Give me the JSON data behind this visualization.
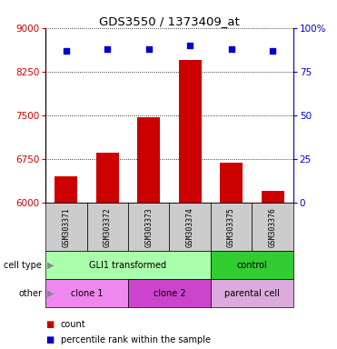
{
  "title": "GDS3550 / 1373409_at",
  "samples": [
    "GSM303371",
    "GSM303372",
    "GSM303373",
    "GSM303374",
    "GSM303375",
    "GSM303376"
  ],
  "counts": [
    6450,
    6850,
    7460,
    8450,
    6680,
    6200
  ],
  "percentile_ranks": [
    87,
    88,
    88,
    90,
    88,
    87
  ],
  "ylim_left": [
    6000,
    9000
  ],
  "ylim_right": [
    0,
    100
  ],
  "yticks_left": [
    6000,
    6750,
    7500,
    8250,
    9000
  ],
  "yticks_right": [
    0,
    25,
    50,
    75,
    100
  ],
  "bar_color": "#cc0000",
  "dot_color": "#0000cc",
  "cell_type_groups": [
    {
      "label": "GLI1 transformed",
      "start": 0,
      "end": 3,
      "color": "#aaffaa"
    },
    {
      "label": "control",
      "start": 4,
      "end": 5,
      "color": "#33cc33"
    }
  ],
  "other_groups": [
    {
      "label": "clone 1",
      "start": 0,
      "end": 1,
      "color": "#ee88ee"
    },
    {
      "label": "clone 2",
      "start": 2,
      "end": 3,
      "color": "#cc44cc"
    },
    {
      "label": "parental cell",
      "start": 4,
      "end": 5,
      "color": "#ddaadd"
    }
  ],
  "legend_count_label": "count",
  "legend_pct_label": "percentile rank within the sample",
  "left_axis_color": "#cc0000",
  "right_axis_color": "#0000cc",
  "sample_bg_color": "#cccccc"
}
